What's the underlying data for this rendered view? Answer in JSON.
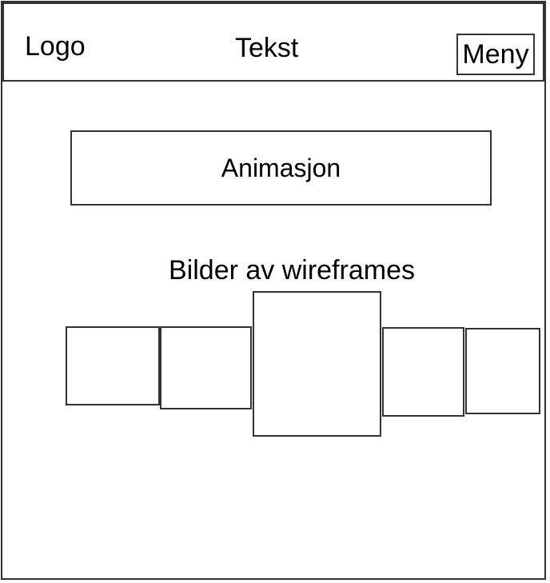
{
  "header": {
    "logo_label": "Logo",
    "text_label": "Tekst",
    "menu_label": "Meny"
  },
  "main": {
    "animation_label": "Animasjon",
    "gallery_caption": "Bilder av wireframes",
    "gallery_count": 5
  }
}
